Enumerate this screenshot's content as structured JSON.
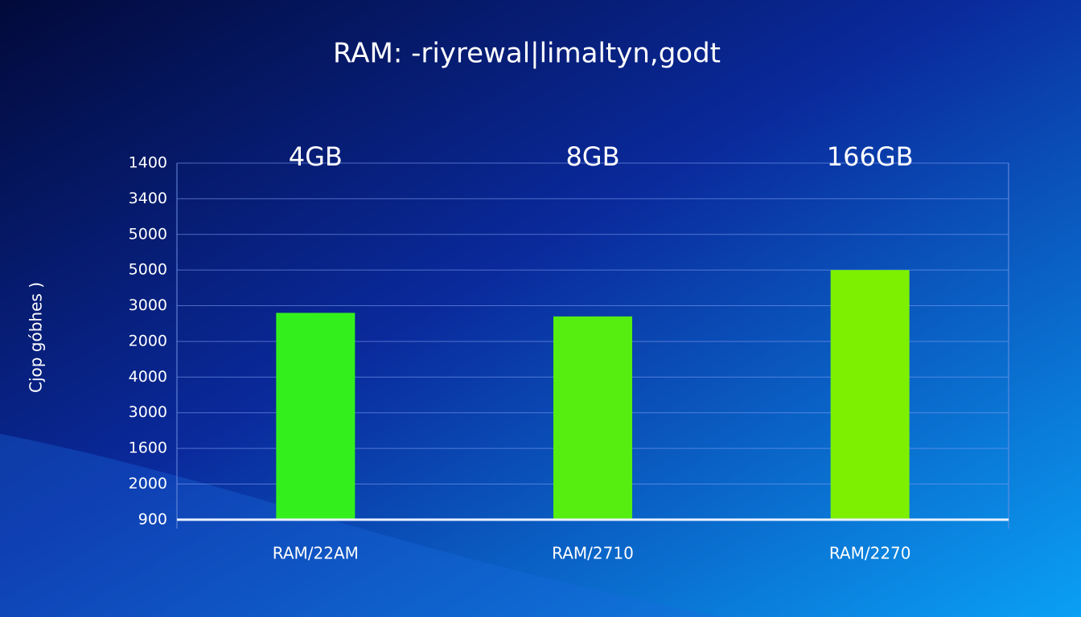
{
  "chart_data": {
    "type": "bar",
    "title": "RAM: -riyrewal|limaltyn,godt",
    "y_label": "Cjop góbhes )",
    "categories": [
      "RAM/22AM",
      "RAM/2710",
      "RAM/2270"
    ],
    "bar_labels": [
      "4GB",
      "8GB",
      "166GB"
    ],
    "values": [
      5.8,
      5.7,
      7.0
    ],
    "colors": [
      "#33f01c",
      "#55ee10",
      "#7cf000"
    ],
    "ylim": [
      -0.25,
      10
    ],
    "yticks": [
      {
        "value": 0,
        "label": "900"
      },
      {
        "value": 1,
        "label": "2000"
      },
      {
        "value": 2,
        "label": "1600"
      },
      {
        "value": 3,
        "label": "3000"
      },
      {
        "value": 4,
        "label": "4000"
      },
      {
        "value": 5,
        "label": "2000"
      },
      {
        "value": 6,
        "label": "3000"
      },
      {
        "value": 7,
        "label": "5000"
      },
      {
        "value": 8,
        "label": "5000"
      },
      {
        "value": 9,
        "label": "3400"
      },
      {
        "value": 10,
        "label": "1400"
      }
    ],
    "grid": true
  }
}
